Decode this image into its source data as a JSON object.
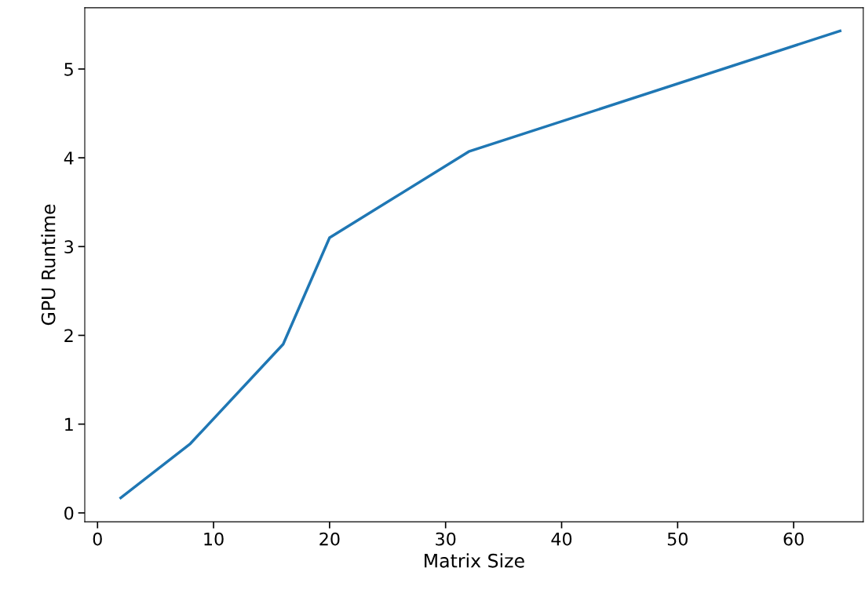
{
  "chart_data": {
    "type": "line",
    "xlabel": "Matrix Size",
    "ylabel": "GPU Runtime",
    "x": [
      2,
      8,
      16,
      20,
      32,
      64
    ],
    "series": [
      {
        "color": "#1f77b4",
        "values": [
          0.17,
          0.78,
          1.9,
          3.1,
          4.07,
          5.43
        ]
      }
    ],
    "xlim": [
      -1.1,
      66
    ],
    "ylim": [
      -0.1,
      5.69
    ],
    "xticks": [
      0,
      10,
      20,
      30,
      40,
      50,
      60
    ],
    "yticks": [
      0,
      1,
      2,
      3,
      4,
      5
    ],
    "grid": false,
    "marker": "none",
    "line_style": "solid"
  }
}
